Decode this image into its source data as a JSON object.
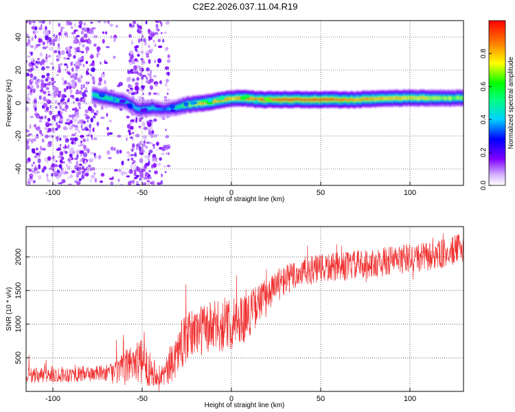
{
  "figure_title": "C2E2.2026.037.11.04.R19",
  "chart_data": [
    {
      "type": "heatmap",
      "title": "",
      "xlabel": "Height of straight line (km)",
      "ylabel": "Frequency (Hz)",
      "xlim": [
        -115,
        130
      ],
      "ylim": [
        -50,
        50
      ],
      "xticks": [
        -100,
        -50,
        0,
        50,
        100
      ],
      "yticks": [
        -40,
        -20,
        0,
        20,
        40
      ],
      "xtick_labels": [
        "-100",
        "-50",
        "0",
        "50",
        "100"
      ],
      "ytick_labels": [
        "-40",
        "-20",
        "0",
        "20",
        "40"
      ],
      "grid": true,
      "colormap": "rainbow (purple-blue-cyan-green-yellow-red)",
      "colorbar": {
        "label": "Normalized spectral amplitude",
        "range": [
          0,
          1
        ],
        "ticks": [
          0,
          0.2,
          0.4,
          0.6,
          0.8
        ],
        "tick_labels": [
          "0.0",
          "0.2",
          "0.4",
          "0.6",
          "0.8"
        ]
      },
      "ridge": {
        "x": [
          -78,
          -70,
          -60,
          -52,
          -45,
          -38,
          -32,
          -25,
          -15,
          -5,
          0,
          5,
          15,
          30,
          50,
          70,
          90,
          110,
          130
        ],
        "y": [
          5,
          3,
          1,
          -4,
          -3,
          -4,
          -3,
          -1,
          0,
          2,
          3,
          3,
          2,
          2,
          2,
          2,
          3,
          3,
          3
        ],
        "amplitude": [
          0.55,
          0.6,
          0.5,
          0.45,
          0.5,
          0.35,
          0.5,
          0.75,
          0.85,
          0.9,
          0.85,
          0.9,
          0.95,
          1.0,
          1.0,
          0.9,
          0.85,
          0.8,
          0.7
        ]
      },
      "noise_region": {
        "x_range": [
          -115,
          -35
        ],
        "y_range": [
          -50,
          50
        ],
        "amplitude_range": [
          0.05,
          0.2
        ]
      }
    },
    {
      "type": "line",
      "title": "",
      "xlabel": "Height of straight line (km)",
      "ylabel": "SNR (10 * v/v)",
      "xlim": [
        -115,
        130
      ],
      "ylim": [
        0,
        2450
      ],
      "xticks": [
        -100,
        -50,
        0,
        50,
        100
      ],
      "yticks": [
        500,
        1000,
        1500,
        2000
      ],
      "xtick_labels": [
        "-100",
        "-50",
        "0",
        "50",
        "100"
      ],
      "ytick_labels": [
        "500",
        "1000",
        "1500",
        "2000"
      ],
      "grid": true,
      "series": [
        {
          "name": "SNR",
          "color": "#f03030",
          "trend_x": [
            -115,
            -100,
            -80,
            -65,
            -60,
            -55,
            -50,
            -45,
            -40,
            -35,
            -30,
            -25,
            -20,
            -10,
            0,
            10,
            20,
            30,
            40,
            50,
            60,
            70,
            80,
            90,
            100,
            110,
            120,
            130
          ],
          "trend_y": [
            220,
            250,
            260,
            280,
            330,
            480,
            420,
            330,
            230,
            320,
            600,
            800,
            900,
            950,
            1000,
            1150,
            1450,
            1650,
            1780,
            1820,
            1850,
            1880,
            1900,
            1950,
            1980,
            2000,
            2050,
            2150
          ],
          "noise_amplitude_x": [
            -115,
            -70,
            -60,
            -50,
            -40,
            -30,
            -10,
            10,
            20,
            40,
            130
          ],
          "noise_amplitude_y": [
            120,
            120,
            250,
            350,
            150,
            350,
            400,
            350,
            250,
            220,
            220
          ]
        }
      ]
    }
  ]
}
